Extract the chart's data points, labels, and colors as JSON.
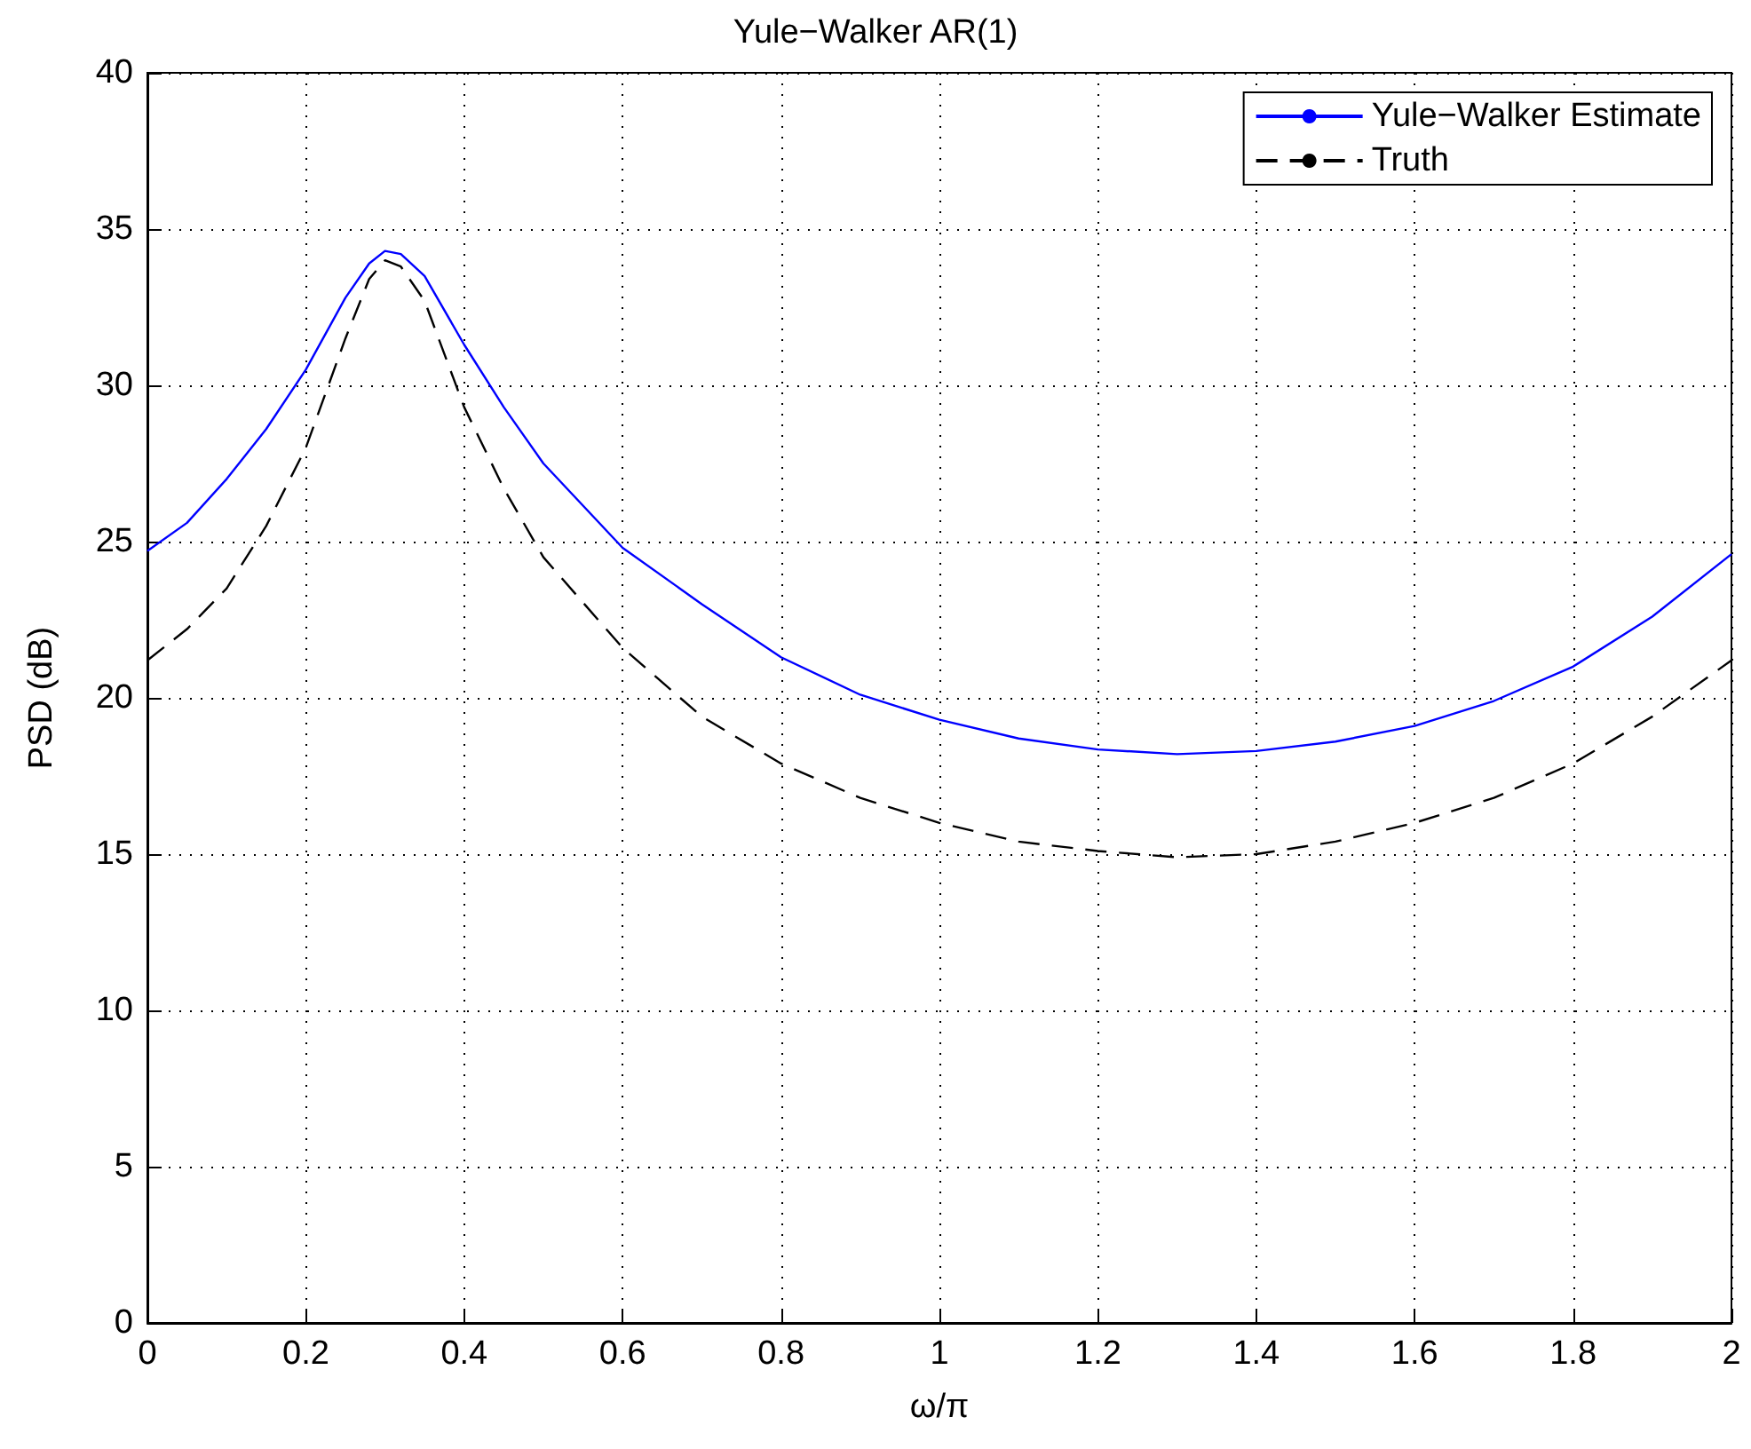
{
  "chart_data": {
    "type": "line",
    "title": "Yule−Walker AR(1)",
    "xlabel": "ω/π",
    "ylabel": "PSD (dB)",
    "xlim": [
      0,
      2
    ],
    "xticks": [
      0,
      0.2,
      0.4,
      0.6,
      0.8,
      1,
      1.2,
      1.4,
      1.6,
      1.8,
      2
    ],
    "ylim": [
      0,
      40
    ],
    "yticks": [
      0,
      5,
      10,
      15,
      20,
      25,
      30,
      35,
      40
    ],
    "grid": true,
    "legend": "top right",
    "series": [
      {
        "name": "Yule−Walker Estimate",
        "color": "#0000ff",
        "line_style": "solid",
        "x": [
          0,
          0.05,
          0.1,
          0.15,
          0.2,
          0.25,
          0.28,
          0.3,
          0.32,
          0.35,
          0.4,
          0.45,
          0.5,
          0.6,
          0.7,
          0.8,
          0.9,
          1,
          1.1,
          1.2,
          1.3,
          1.4,
          1.5,
          1.6,
          1.7,
          1.8,
          1.9,
          2
        ],
        "values": [
          24.7,
          25.6,
          27,
          28.6,
          30.5,
          32.8,
          33.9,
          34.3,
          34.2,
          33.5,
          31.3,
          29.3,
          27.5,
          24.8,
          23,
          21.3,
          20.1,
          19.3,
          18.7,
          18.35,
          18.2,
          18.3,
          18.6,
          19.1,
          19.9,
          21,
          22.6,
          24.6
        ]
      },
      {
        "name": "Truth",
        "color": "#000000",
        "line_style": "dashed",
        "x": [
          0,
          0.05,
          0.1,
          0.15,
          0.2,
          0.25,
          0.28,
          0.3,
          0.32,
          0.35,
          0.4,
          0.45,
          0.5,
          0.6,
          0.7,
          0.8,
          0.9,
          1,
          1.1,
          1.2,
          1.3,
          1.4,
          1.5,
          1.6,
          1.7,
          1.8,
          1.9,
          2
        ],
        "values": [
          21.2,
          22.2,
          23.5,
          25.5,
          28,
          31.5,
          33.4,
          34,
          33.8,
          32.7,
          29.3,
          26.7,
          24.5,
          21.6,
          19.4,
          17.9,
          16.8,
          16,
          15.4,
          15.1,
          14.9,
          15,
          15.4,
          16,
          16.8,
          17.9,
          19.4,
          21.2
        ]
      }
    ]
  }
}
